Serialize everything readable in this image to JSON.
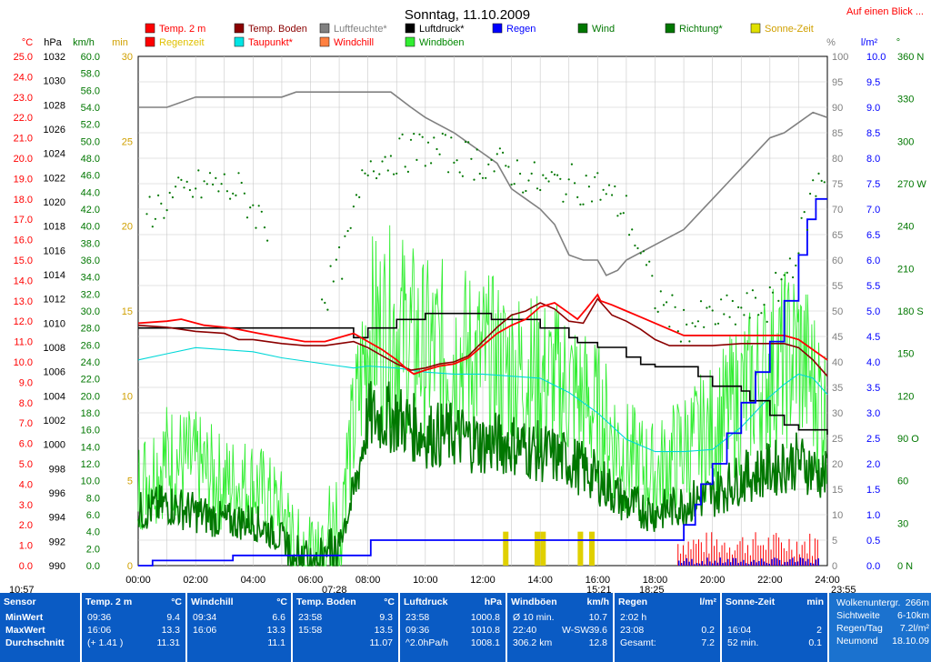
{
  "header": {
    "title": "Sonntag, 11.10.2009",
    "link": "Auf einen Blick ..."
  },
  "units": {
    "temp": "°C",
    "press": "hPa",
    "kmh": "km/h",
    "min": "min",
    "percent": "%",
    "rain": "l/m²",
    "deg": "°"
  },
  "legend": [
    {
      "label": "Temp. 2 m",
      "color": "#ff0000",
      "text_color": "#ff0000"
    },
    {
      "label": "Regenzeit",
      "color": "#ff0000",
      "text_color": "#e0c000"
    },
    {
      "label": "Temp. Boden",
      "color": "#8b0000",
      "text_color": "#8b0000"
    },
    {
      "label": "Taupunkt*",
      "color": "#00e5e5",
      "text_color": "#ff0000"
    },
    {
      "label": "Luftfeuchte*",
      "color": "#808080",
      "text_color": "#808080"
    },
    {
      "label": "Windchill",
      "color": "#ff8040",
      "text_color": "#ff0000"
    },
    {
      "label": "Luftdruck*",
      "color": "#000000",
      "text_color": "#000000"
    },
    {
      "label": "Windböen",
      "color": "#33ee33",
      "text_color": "#008800"
    },
    {
      "label": "Regen",
      "color": "#0000ff",
      "text_color": "#0000ff"
    },
    {
      "label": "Wind",
      "color": "#007700",
      "text_color": "#007700"
    },
    {
      "label": "Richtung*",
      "color": "#007700",
      "text_color": "#007700"
    },
    {
      "label": "Sonne-Zeit",
      "color": "#e0e000",
      "text_color": "#d0a000"
    }
  ],
  "colors": {
    "temp": "#ff0000",
    "ground": "#8b0000",
    "dew": "#00d8d8",
    "humidity": "#808080",
    "windchill": "#ff8040",
    "pressure": "#000000",
    "gust": "#33ee33",
    "rain": "#0000ff",
    "wind": "#007700",
    "direction": "#007700",
    "sun": "#e0d000"
  },
  "axes": {
    "temp_ticks": [
      "25.0",
      "24.0",
      "23.0",
      "22.0",
      "21.0",
      "20.0",
      "19.0",
      "18.0",
      "17.0",
      "16.0",
      "15.0",
      "14.0",
      "13.0",
      "12.0",
      "11.0",
      "10.0",
      "9.0",
      "8.0",
      "7.0",
      "6.0",
      "5.0",
      "4.0",
      "3.0",
      "2.0",
      "1.0",
      "0.0"
    ],
    "press_ticks": [
      "1032",
      "1030",
      "1028",
      "1026",
      "1024",
      "1022",
      "1020",
      "1018",
      "1016",
      "1014",
      "1012",
      "1010",
      "1008",
      "1006",
      "1004",
      "1002",
      "1000",
      "998",
      "996",
      "994",
      "992",
      "990"
    ],
    "wind_ticks": [
      "60.0",
      "58.0",
      "56.0",
      "54.0",
      "52.0",
      "50.0",
      "48.0",
      "46.0",
      "44.0",
      "42.0",
      "40.0",
      "38.0",
      "36.0",
      "34.0",
      "32.0",
      "30.0",
      "28.0",
      "26.0",
      "24.0",
      "22.0",
      "20.0",
      "18.0",
      "16.0",
      "14.0",
      "12.0",
      "10.0",
      "8.0",
      "6.0",
      "4.0",
      "2.0",
      "0.0"
    ],
    "min_ticks": [
      "30",
      "25",
      "20",
      "15",
      "10",
      "5",
      "0"
    ],
    "hum_ticks": [
      "100",
      "95",
      "90",
      "85",
      "80",
      "75",
      "70",
      "65",
      "60",
      "55",
      "50",
      "45",
      "40",
      "35",
      "30",
      "25",
      "20",
      "15",
      "10",
      "5",
      "0"
    ],
    "rain_ticks": [
      "10.0",
      "9.5",
      "9.0",
      "8.5",
      "8.0",
      "7.5",
      "7.0",
      "6.5",
      "6.0",
      "5.5",
      "5.0",
      "4.5",
      "4.0",
      "3.5",
      "3.0",
      "2.5",
      "2.0",
      "1.5",
      "1.0",
      "0.5",
      "0.0"
    ],
    "dir_ticks": [
      "360 N",
      "330",
      "300",
      "270 W",
      "240",
      "210",
      "180 S",
      "150",
      "120",
      "90 O",
      "60",
      "30",
      "0 N"
    ],
    "time_ticks": [
      "00:00",
      "02:00",
      "04:00",
      "06:00",
      "08:00",
      "10:00",
      "12:00",
      "14:00",
      "16:00",
      "18:00",
      "20:00",
      "22:00",
      "24:00"
    ]
  },
  "sun_markers": {
    "sunrise": "07:28",
    "noon": "15:21",
    "sunset": "18:25",
    "left": "10:57",
    "right": "23:55"
  },
  "chart_data": {
    "type": "line",
    "title": "Sonntag, 11.10.2009",
    "x_range_hours": [
      0,
      24
    ],
    "ylim_temp": [
      0,
      25
    ],
    "ylim_pressure": [
      990,
      1032
    ],
    "ylim_wind": [
      0,
      60
    ],
    "ylim_sun_min": [
      0,
      30
    ],
    "ylim_humidity": [
      0,
      100
    ],
    "ylim_rain": [
      0,
      10
    ],
    "ylim_direction": [
      0,
      360
    ],
    "grid": true,
    "series": [
      {
        "name": "Temp. 2 m",
        "unit": "°C",
        "x": [
          0,
          1,
          1.5,
          2.3,
          3,
          3.5,
          4.2,
          5,
          5.8,
          6.5,
          7,
          7.5,
          8,
          8.5,
          9,
          9.4,
          9.6,
          10,
          10.5,
          11,
          11.5,
          12,
          12.5,
          13,
          13.5,
          14,
          14.5,
          15,
          15.3,
          15.6,
          16,
          16.1,
          16.5,
          17,
          17.5,
          18,
          18.5,
          19,
          20,
          21,
          22,
          22.5,
          23,
          23.5,
          24
        ],
        "y": [
          11.9,
          12.0,
          12.1,
          11.8,
          11.7,
          11.6,
          11.4,
          11.2,
          11.0,
          11.0,
          11.2,
          11.4,
          11.0,
          10.6,
          10.1,
          9.6,
          9.4,
          9.6,
          9.8,
          9.9,
          10.2,
          10.8,
          11.4,
          11.8,
          12.1,
          12.7,
          12.9,
          12.4,
          12.1,
          12.6,
          13.3,
          13.0,
          12.8,
          12.5,
          12.2,
          11.9,
          11.6,
          11.3,
          11.3,
          11.3,
          11.3,
          11.3,
          11.1,
          10.6,
          10.1
        ]
      },
      {
        "name": "Temp. Boden",
        "unit": "°C",
        "x": [
          0,
          1,
          2,
          3,
          3.5,
          4,
          5,
          5.8,
          6.5,
          7,
          7.5,
          8,
          8.5,
          9,
          9.5,
          10,
          10.5,
          11,
          11.5,
          12,
          12.5,
          13,
          13.5,
          14,
          14.5,
          15,
          15.5,
          16,
          16.5,
          17,
          17.5,
          18,
          18.5,
          19,
          20,
          21,
          22,
          22.5,
          23,
          23.5,
          24
        ],
        "y": [
          11.8,
          11.7,
          11.5,
          11.4,
          11.1,
          11.1,
          10.9,
          10.8,
          10.8,
          10.9,
          11.0,
          10.7,
          10.3,
          9.9,
          9.6,
          9.7,
          9.9,
          10.0,
          10.3,
          11.0,
          11.7,
          12.3,
          12.5,
          12.9,
          12.6,
          12.0,
          11.9,
          13.1,
          12.3,
          12.0,
          11.6,
          11.1,
          10.8,
          10.8,
          10.8,
          10.9,
          10.9,
          10.9,
          10.7,
          10.1,
          9.3
        ]
      },
      {
        "name": "Taupunkt*",
        "unit": "°C",
        "x": [
          0,
          1,
          2,
          3,
          4,
          5,
          6,
          7,
          7.5,
          8,
          9,
          10,
          11,
          12,
          13,
          14,
          15,
          16,
          17,
          18,
          19,
          20,
          21,
          22,
          22.5,
          23,
          23.5,
          24
        ],
        "y": [
          10.1,
          10.4,
          10.7,
          10.6,
          10.5,
          10.2,
          10.0,
          9.8,
          9.7,
          9.8,
          9.7,
          9.5,
          9.4,
          9.4,
          9.3,
          9.2,
          8.5,
          7.5,
          6.2,
          5.6,
          5.6,
          5.7,
          6.8,
          8.3,
          8.9,
          9.4,
          9.2,
          8.4
        ]
      },
      {
        "name": "Luftfeuchte*",
        "unit": "%",
        "x": [
          0,
          1,
          2,
          3,
          4,
          5,
          5.5,
          6,
          7,
          8,
          8.8,
          9.5,
          10,
          11,
          12,
          12.5,
          13,
          13.5,
          14,
          14.5,
          15,
          15.5,
          16,
          16.3,
          16.7,
          17,
          18,
          19,
          19.5,
          20,
          20.5,
          21,
          22,
          22.5,
          23,
          23.5,
          24
        ],
        "y": [
          90,
          90,
          92,
          92,
          92,
          92,
          93,
          93,
          93,
          93,
          93,
          90,
          88,
          85,
          81,
          79,
          74,
          72,
          70,
          67,
          61,
          60,
          60,
          57,
          58,
          60,
          63,
          66,
          69,
          72,
          75,
          78,
          84,
          85,
          87,
          89,
          88
        ]
      },
      {
        "name": "Luftdruck*",
        "unit": "hPa",
        "x": [
          0,
          2,
          4,
          6,
          7,
          7.5,
          8,
          9,
          10,
          11,
          12,
          12.3,
          13,
          14,
          15,
          15.3,
          16,
          17,
          17.5,
          18,
          19,
          19.5,
          20,
          21,
          21.3,
          22,
          22.5,
          23,
          24
        ],
        "y": [
          1009.6,
          1009.6,
          1009.6,
          1009.6,
          1009.6,
          1008.8,
          1009.6,
          1010.3,
          1010.8,
          1010.8,
          1010.8,
          1010.3,
          1010.3,
          1009.6,
          1008.8,
          1008.4,
          1008.0,
          1007.2,
          1006.6,
          1006.4,
          1006.4,
          1005.6,
          1004.8,
          1004.4,
          1003.6,
          1002.4,
          1001.6,
          1001.2,
          1000.8
        ]
      },
      {
        "name": "Regen",
        "unit": "l/m²",
        "x": [
          0,
          0.5,
          3.2,
          3.3,
          7.9,
          8.1,
          8.2,
          18.8,
          19,
          19.4,
          19.6,
          20,
          20.5,
          21,
          21.5,
          22,
          22.5,
          23,
          23.3,
          23.6,
          24
        ],
        "y": [
          0,
          0.1,
          0.1,
          0.2,
          0.2,
          0.5,
          0.5,
          0.5,
          0.8,
          1.2,
          1.6,
          2.0,
          2.6,
          3.2,
          3.8,
          4.4,
          5.2,
          6.1,
          6.8,
          7.2,
          7.2
        ]
      },
      {
        "name": "Wind",
        "unit": "km/h",
        "x": [
          0,
          1,
          2,
          3,
          4,
          5,
          6,
          7,
          7.5,
          8,
          9,
          10,
          11,
          12,
          13,
          14,
          15,
          16,
          17,
          18,
          19,
          20,
          21,
          22,
          23,
          24
        ],
        "y": [
          6,
          7,
          6,
          5,
          5,
          3,
          1,
          3,
          8,
          17,
          17,
          15,
          15,
          14,
          14,
          13,
          12,
          10,
          7,
          6,
          7,
          8,
          10,
          11,
          12,
          10
        ]
      },
      {
        "name": "Windböen",
        "unit": "km/h",
        "x": [
          0,
          1,
          2,
          3,
          4,
          5,
          6,
          7,
          7.5,
          8,
          9,
          10,
          11,
          12,
          13,
          14,
          15,
          16,
          17,
          18,
          19,
          20,
          21,
          22,
          23,
          24
        ],
        "y": [
          9,
          12,
          11,
          9,
          9,
          6,
          2,
          7,
          15,
          26,
          27,
          24,
          24,
          23,
          22,
          21,
          20,
          17,
          12,
          10,
          13,
          15,
          19,
          22,
          24,
          17
        ]
      },
      {
        "name": "Richtung*",
        "unit": "°",
        "x": [
          0.5,
          1.5,
          2.5,
          3.5,
          6.5,
          7.2,
          8,
          9,
          10,
          11,
          12,
          13,
          14,
          15,
          16,
          17,
          18,
          19,
          20,
          21,
          22,
          22.5,
          23,
          23.5,
          24
        ],
        "y": [
          252,
          262,
          270,
          265,
          190,
          220,
          285,
          290,
          295,
          290,
          285,
          280,
          270,
          270,
          268,
          250,
          190,
          170,
          175,
          180,
          185,
          205,
          225,
          265,
          280
        ]
      },
      {
        "name": "Sonne-Zeit",
        "unit": "min",
        "x": [
          12.8,
          13.9,
          14.1,
          15.4,
          15.8
        ],
        "y": [
          2,
          2,
          2,
          2,
          2
        ]
      }
    ]
  },
  "footer": {
    "sensor": {
      "title": "Sensor",
      "rows": [
        "MinWert",
        "MaxWert",
        "Durchschnitt"
      ]
    },
    "temp": {
      "title": "Temp. 2 m",
      "unit": "°C",
      "rows": [
        [
          "09:36",
          "9.4"
        ],
        [
          "16:06",
          "13.3"
        ],
        [
          "(+ 1.41 )",
          "11.31"
        ]
      ]
    },
    "windchill": {
      "title": "Windchill",
      "unit": "°C",
      "rows": [
        [
          "09:34",
          "6.6"
        ],
        [
          "16:06",
          "13.3"
        ],
        [
          "",
          "11.1"
        ]
      ]
    },
    "ground": {
      "title": "Temp. Boden",
      "unit": "°C",
      "rows": [
        [
          "23:58",
          "9.3"
        ],
        [
          "15:58",
          "13.5"
        ],
        [
          "",
          "11.07"
        ]
      ]
    },
    "pressure": {
      "title": "Luftdruck",
      "unit": "hPa",
      "rows": [
        [
          "23:58",
          "1000.8"
        ],
        [
          "09:36",
          "1010.8"
        ],
        [
          "^2.0hPa/h",
          "1008.1"
        ]
      ]
    },
    "gusts": {
      "title": "Windböen",
      "unit": "km/h",
      "rows": [
        [
          "Ø 10 min.",
          "",
          "10.7"
        ],
        [
          "22:40",
          "W-SW",
          "39.6"
        ],
        [
          "306.2 km",
          "",
          "12.8"
        ]
      ]
    },
    "rain": {
      "title": "Regen",
      "unit": "l/m²",
      "rows": [
        [
          "2:02 h",
          ""
        ],
        [
          "23:08",
          "0.2"
        ],
        [
          "Gesamt:",
          "7.2"
        ]
      ]
    },
    "sun": {
      "title": "Sonne-Zeit",
      "unit": "min",
      "rows": [
        [
          "",
          ""
        ],
        [
          "16:04",
          "2"
        ],
        [
          "52 min.",
          "0.1"
        ]
      ]
    },
    "info": [
      [
        "Wolkenuntergr.",
        "266m"
      ],
      [
        "Sichtweite",
        "6-10km"
      ],
      [
        "Regen/Tag",
        "7.2l/m²"
      ],
      [
        "Neumond",
        "18.10.09"
      ]
    ]
  }
}
